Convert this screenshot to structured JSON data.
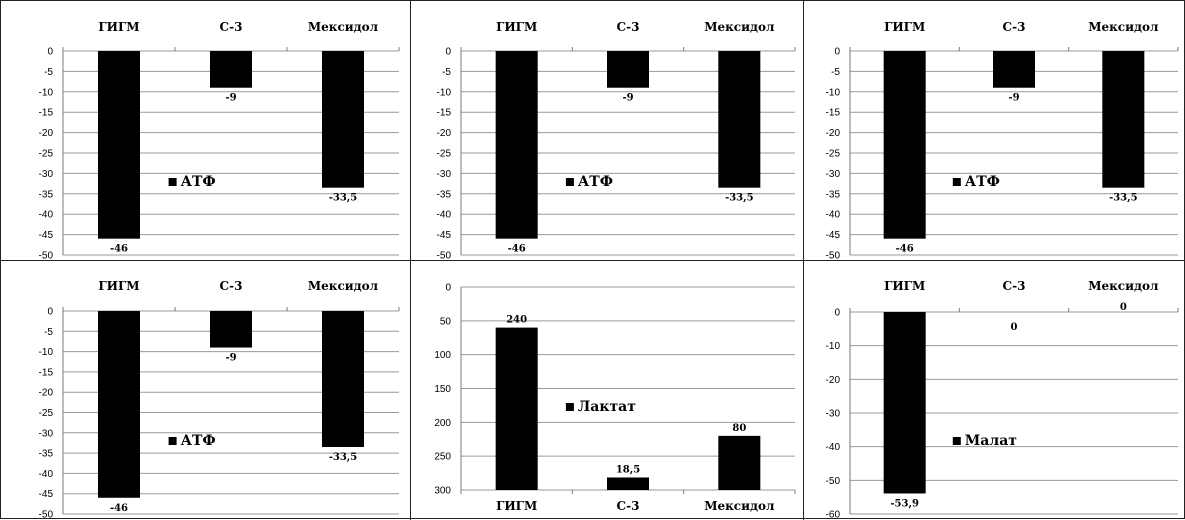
{
  "chart_data": [
    {
      "type": "bar",
      "categories": [
        "ГИГМ",
        "С-3",
        "Мексидол"
      ],
      "values": [
        -46,
        -9,
        -33.5
      ],
      "value_labels": [
        "-46",
        "-9",
        "-33,5"
      ],
      "yticks": [
        "0",
        "-5",
        "-10",
        "-15",
        "-20",
        "-25",
        "-30",
        "-35",
        "-40",
        "-45",
        "-50"
      ],
      "ylim": [
        -50,
        0
      ],
      "legend": "АТФ",
      "legend_position": "center",
      "category_axis": "top",
      "grid": true
    },
    {
      "type": "bar",
      "categories": [
        "ГИГМ",
        "С-3",
        "Мексидол"
      ],
      "values": [
        -46,
        -9,
        -33.5
      ],
      "value_labels": [
        "-46",
        "-9",
        "-33,5"
      ],
      "yticks": [
        "0",
        "-5",
        "-10",
        "-15",
        "-20",
        "-25",
        "-30",
        "-35",
        "-40",
        "-45",
        "-50"
      ],
      "ylim": [
        -50,
        0
      ],
      "legend": "АТФ",
      "legend_position": "center",
      "category_axis": "top",
      "grid": true
    },
    {
      "type": "bar",
      "categories": [
        "ГИГМ",
        "С-3",
        "Мексидол"
      ],
      "values": [
        -46,
        -9,
        -33.5
      ],
      "value_labels": [
        "-46",
        "-9",
        "-33,5"
      ],
      "yticks": [
        "0",
        "-5",
        "-10",
        "-15",
        "-20",
        "-25",
        "-30",
        "-35",
        "-40",
        "-45",
        "-50"
      ],
      "ylim": [
        -50,
        0
      ],
      "legend": "АТФ",
      "legend_position": "center",
      "category_axis": "top",
      "grid": true
    },
    {
      "type": "bar",
      "categories": [
        "ГИГМ",
        "С-3",
        "Мексидол"
      ],
      "values": [
        -46,
        -9,
        -33.5
      ],
      "value_labels": [
        "-46",
        "-9",
        "-33,5"
      ],
      "yticks": [
        "0",
        "-5",
        "-10",
        "-15",
        "-20",
        "-25",
        "-30",
        "-35",
        "-40",
        "-45",
        "-50"
      ],
      "ylim": [
        -50,
        0
      ],
      "legend": "АТФ",
      "legend_position": "center",
      "category_axis": "top",
      "grid": true
    },
    {
      "type": "bar",
      "categories": [
        "ГИГМ",
        "С-3",
        "Мексидол"
      ],
      "values": [
        240,
        18.5,
        80
      ],
      "value_labels": [
        "240",
        "18,5",
        "80"
      ],
      "yticks": [
        "0",
        "50",
        "100",
        "150",
        "200",
        "250",
        "300"
      ],
      "ylim": [
        0,
        300
      ],
      "legend": "Лактат",
      "legend_position": "center",
      "category_axis": "bottom",
      "grid": true
    },
    {
      "type": "bar",
      "categories": [
        "ГИГМ",
        "С-3",
        "Мексидол"
      ],
      "values": [
        -53.9,
        0,
        0
      ],
      "value_labels": [
        "-53,9",
        "0",
        "0"
      ],
      "yticks": [
        "0",
        "-10",
        "-20",
        "-30",
        "-40",
        "-50",
        "-60"
      ],
      "ylim": [
        -60,
        0
      ],
      "legend": "Малат",
      "legend_position": "center",
      "category_axis": "top",
      "grid": true
    }
  ],
  "colors": {
    "bar": "#000000",
    "grid": "#9a9a9a",
    "axis": "#7a7a7a",
    "text": "#000000"
  }
}
